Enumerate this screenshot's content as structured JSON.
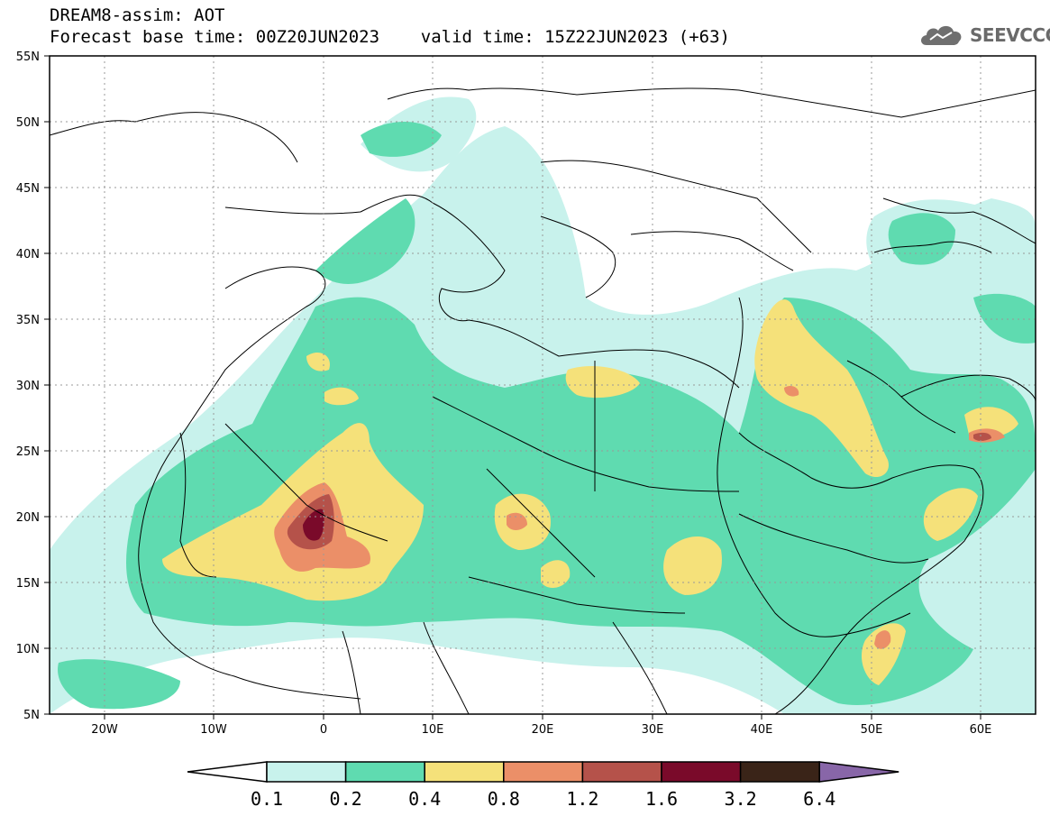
{
  "header": {
    "title_line1": "DREAM8-assim: AOT",
    "title_line2": "Forecast base time: 00Z20JUN2023    valid time: 15Z22JUN2023 (+63)",
    "logo_text": "SEEVCCC",
    "logo_icon": "cloud-icon"
  },
  "map": {
    "lon_range": [
      -25,
      65
    ],
    "lat_range": [
      5,
      55
    ],
    "lat_ticks": [
      "55N",
      "50N",
      "45N",
      "40N",
      "35N",
      "30N",
      "25N",
      "20N",
      "15N",
      "10N",
      "5N"
    ],
    "lon_ticks": [
      "20W",
      "10W",
      "0",
      "10E",
      "20E",
      "30E",
      "40E",
      "50E",
      "60E"
    ],
    "gridlines": true,
    "field": "Aerosol Optical Thickness"
  },
  "colorbar": {
    "labels": [
      "0.1",
      "0.2",
      "0.4",
      "0.8",
      "1.2",
      "1.6",
      "3.2",
      "6.4"
    ],
    "colors": [
      "#c8f2ec",
      "#5fdbb0",
      "#f5e17a",
      "#eb8f68",
      "#b5524a",
      "#7a0a2a",
      "#3a2418",
      "#8866a8"
    ],
    "under_color": "#ffffff"
  }
}
